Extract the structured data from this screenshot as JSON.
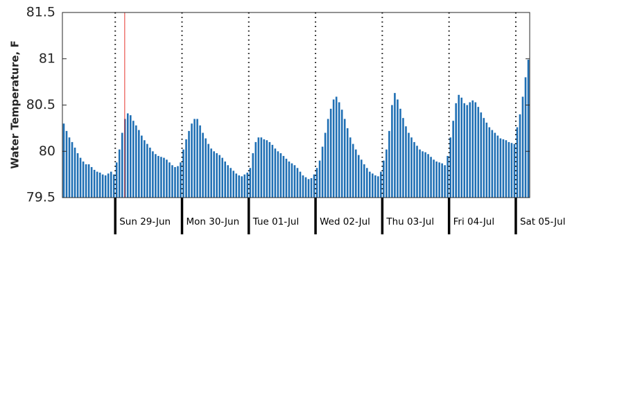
{
  "chart_data": {
    "type": "bar",
    "ylabel": "Water Temperature, F",
    "color": "#1f6fb4",
    "ylim": [
      79.5,
      81.5
    ],
    "yticks": [
      79.5,
      80,
      80.5,
      81,
      81.5
    ],
    "xlim": [
      0,
      168
    ],
    "xticks": [
      {
        "value": 19,
        "label": "Sun 29-Jun"
      },
      {
        "value": 43,
        "label": "Mon 30-Jun"
      },
      {
        "value": 67,
        "label": "Tue 01-Jul"
      },
      {
        "value": 91,
        "label": "Wed 02-Jul"
      },
      {
        "value": 115,
        "label": "Thu 03-Jul"
      },
      {
        "value": 139,
        "label": "Fri 04-Jul"
      },
      {
        "value": 163,
        "label": "Sat 05-Jul"
      }
    ],
    "highlight_x": 22.4,
    "highlight_color": "#e8332a",
    "values": [
      80.3,
      80.22,
      80.15,
      80.1,
      80.04,
      79.98,
      79.93,
      79.89,
      79.86,
      79.86,
      79.83,
      79.8,
      79.78,
      79.77,
      79.75,
      79.74,
      79.76,
      79.78,
      79.75,
      79.88,
      80.02,
      80.2,
      80.35,
      80.41,
      80.39,
      80.33,
      80.28,
      80.23,
      80.17,
      80.12,
      80.08,
      80.04,
      80.0,
      79.97,
      79.95,
      79.94,
      79.93,
      79.91,
      79.88,
      79.85,
      79.83,
      79.84,
      79.88,
      80.02,
      80.13,
      80.22,
      80.3,
      80.35,
      80.35,
      80.28,
      80.2,
      80.14,
      80.08,
      80.03,
      80.0,
      79.98,
      79.96,
      79.93,
      79.89,
      79.85,
      79.82,
      79.79,
      79.76,
      79.74,
      79.73,
      79.75,
      79.77,
      79.82,
      79.98,
      80.1,
      80.15,
      80.15,
      80.13,
      80.12,
      80.1,
      80.07,
      80.03,
      80.0,
      79.98,
      79.95,
      79.92,
      79.89,
      79.87,
      79.85,
      79.82,
      79.78,
      79.74,
      79.72,
      79.7,
      79.71,
      79.75,
      79.82,
      79.9,
      80.05,
      80.2,
      80.35,
      80.46,
      80.56,
      80.59,
      80.53,
      80.45,
      80.35,
      80.25,
      80.15,
      80.08,
      80.02,
      79.96,
      79.91,
      79.86,
      79.82,
      79.78,
      79.76,
      79.74,
      79.73,
      79.78,
      79.9,
      80.02,
      80.22,
      80.5,
      80.63,
      80.56,
      80.46,
      80.36,
      80.27,
      80.2,
      80.15,
      80.1,
      80.06,
      80.02,
      80.0,
      79.99,
      79.97,
      79.94,
      79.91,
      79.89,
      79.88,
      79.87,
      79.85,
      79.95,
      80.15,
      80.33,
      80.52,
      80.61,
      80.58,
      80.52,
      80.5,
      80.53,
      80.55,
      80.53,
      80.48,
      80.42,
      80.36,
      80.31,
      80.26,
      80.23,
      80.2,
      80.17,
      80.14,
      80.13,
      80.12,
      80.1,
      80.09,
      80.08,
      80.26,
      80.4,
      80.59,
      80.8,
      80.99
    ]
  }
}
